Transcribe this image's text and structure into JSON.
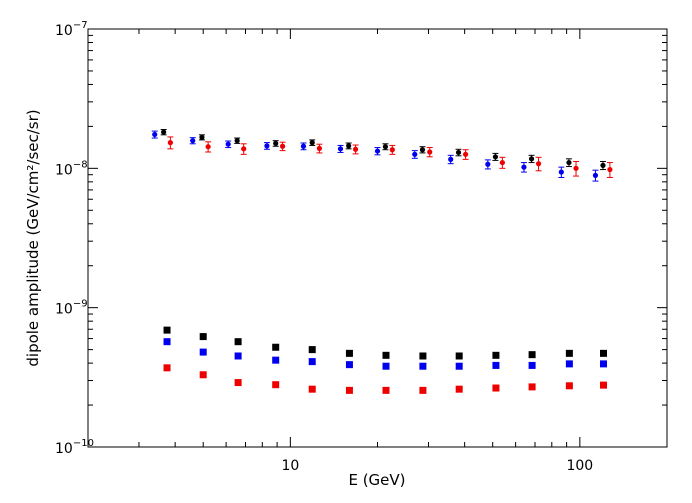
{
  "chart_data": {
    "type": "scatter",
    "title": "",
    "xlabel": "E  (GeV)",
    "ylabel": "dipole amplitude    (GeV/cm²/sec/sr)",
    "xscale": "log",
    "yscale": "log",
    "xlim": [
      2,
      200
    ],
    "ylim": [
      1e-10,
      1e-07
    ],
    "grid": false,
    "legend": "none",
    "x_ticks": [
      {
        "value": 10,
        "label": "10"
      },
      {
        "value": 100,
        "label": "100"
      }
    ],
    "y_ticks": [
      {
        "value": 1e-10,
        "mant": "10",
        "exp": "−10"
      },
      {
        "value": 1e-09,
        "mant": "10",
        "exp": "−9"
      },
      {
        "value": 1e-08,
        "mant": "10",
        "exp": "−8"
      },
      {
        "value": 1e-07,
        "mant": "10",
        "exp": "−7"
      }
    ],
    "series": [
      {
        "color": "#0000ee",
        "marker": "circle",
        "x": [
          3.4,
          4.6,
          6.1,
          8.3,
          11.1,
          14.9,
          20.0,
          26.9,
          35.8,
          48.1,
          64.1,
          86.3,
          113.2
        ],
        "y": [
          1.75e-08,
          1.58e-08,
          1.49e-08,
          1.45e-08,
          1.44e-08,
          1.38e-08,
          1.33e-08,
          1.26e-08,
          1.16e-08,
          1.07e-08,
          1.02e-08,
          9.4e-09,
          8.9e-09
        ],
        "err": [
          1e-09,
          8e-10,
          8e-10,
          8e-10,
          8e-10,
          8e-10,
          8e-10,
          8e-10,
          8e-10,
          8e-10,
          8e-10,
          8e-10,
          8e-10
        ]
      },
      {
        "color": "#000000",
        "marker": "circle",
        "x": [
          3.65,
          4.95,
          6.55,
          8.9,
          11.9,
          15.9,
          21.3,
          28.6,
          38.1,
          51.1,
          68.1,
          91.7,
          120.2
        ],
        "y": [
          1.82e-08,
          1.67e-08,
          1.58e-08,
          1.51e-08,
          1.53e-08,
          1.45e-08,
          1.43e-08,
          1.36e-08,
          1.3e-08,
          1.21e-08,
          1.17e-08,
          1.1e-08,
          1.05e-08
        ],
        "err": [
          8e-10,
          7e-10,
          7e-10,
          7e-10,
          7e-10,
          7e-10,
          7e-10,
          7e-10,
          7e-10,
          7e-10,
          7e-10,
          7e-10,
          7e-10
        ]
      },
      {
        "color": "#ee0000",
        "marker": "circle",
        "x": [
          3.85,
          5.2,
          6.9,
          9.4,
          12.6,
          16.8,
          22.5,
          30.3,
          40.3,
          54.0,
          72.0,
          97.0,
          127.0
        ],
        "y": [
          1.53e-08,
          1.43e-08,
          1.38e-08,
          1.44e-08,
          1.39e-08,
          1.37e-08,
          1.36e-08,
          1.31e-08,
          1.26e-08,
          1.1e-08,
          1.08e-08,
          1e-08,
          9.8e-09
        ],
        "err": [
          1.5e-09,
          1.2e-09,
          1.2e-09,
          1e-09,
          1e-09,
          1e-09,
          1e-09,
          1e-09,
          1e-09,
          1e-09,
          1.2e-09,
          1.2e-09,
          1.2e-09
        ]
      },
      {
        "color": "#000000",
        "marker": "square",
        "x": [
          3.75,
          5.0,
          6.6,
          8.9,
          11.9,
          16.0,
          21.4,
          28.7,
          38.3,
          51.3,
          68.4,
          92.0,
          120.7
        ],
        "y": [
          6.9e-10,
          6.2e-10,
          5.7e-10,
          5.2e-10,
          5e-10,
          4.7e-10,
          4.55e-10,
          4.5e-10,
          4.5e-10,
          4.55e-10,
          4.6e-10,
          4.7e-10,
          4.7e-10
        ]
      },
      {
        "color": "#0000ee",
        "marker": "square",
        "x": [
          3.75,
          5.0,
          6.6,
          8.9,
          11.9,
          16.0,
          21.4,
          28.7,
          38.3,
          51.3,
          68.4,
          92.0,
          120.7
        ],
        "y": [
          5.7e-10,
          4.8e-10,
          4.5e-10,
          4.2e-10,
          4.1e-10,
          3.9e-10,
          3.8e-10,
          3.8e-10,
          3.8e-10,
          3.85e-10,
          3.85e-10,
          3.95e-10,
          3.95e-10
        ]
      },
      {
        "color": "#ee0000",
        "marker": "square",
        "x": [
          3.75,
          5.0,
          6.6,
          8.9,
          11.9,
          16.0,
          21.4,
          28.7,
          38.3,
          51.3,
          68.4,
          92.0,
          120.7
        ],
        "y": [
          3.7e-10,
          3.3e-10,
          2.9e-10,
          2.8e-10,
          2.6e-10,
          2.55e-10,
          2.55e-10,
          2.55e-10,
          2.6e-10,
          2.65e-10,
          2.7e-10,
          2.75e-10,
          2.78e-10
        ]
      }
    ]
  }
}
